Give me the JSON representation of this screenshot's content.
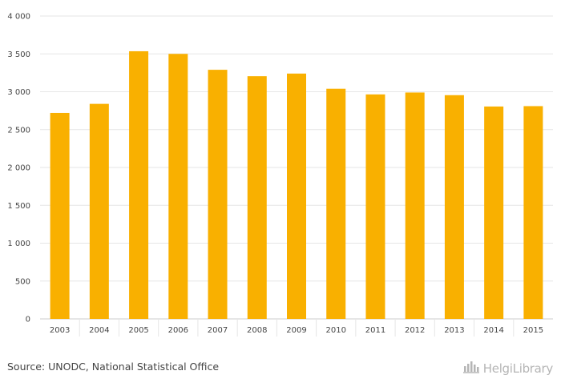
{
  "colors": {
    "bar": "#f9b000",
    "grid": "#e6e6e6",
    "axis": "#cccccc",
    "text": "#444444",
    "brand": "#b5b5b5"
  },
  "chart_data": {
    "type": "bar",
    "categories": [
      "2003",
      "2004",
      "2005",
      "2006",
      "2007",
      "2008",
      "2009",
      "2010",
      "2011",
      "2012",
      "2013",
      "2014",
      "2015"
    ],
    "values": [
      2720,
      2840,
      3535,
      3500,
      3290,
      3205,
      3240,
      3040,
      2965,
      2990,
      2955,
      2805,
      2810
    ],
    "title": "",
    "xlabel": "",
    "ylabel": "",
    "ylim": [
      0,
      4000
    ],
    "yticks": [
      0,
      500,
      1000,
      1500,
      2000,
      2500,
      3000,
      3500,
      4000
    ],
    "ytick_labels": [
      "0",
      "500",
      "1 000",
      "1 500",
      "2 000",
      "2 500",
      "3 000",
      "3 500",
      "4 000"
    ],
    "grid": true,
    "legend": "none"
  },
  "footer": {
    "source": "Source: UNODC, National Statistical Office",
    "brand": "HelgiLibrary"
  },
  "icons": {
    "brand_logo": "library-building-icon"
  }
}
